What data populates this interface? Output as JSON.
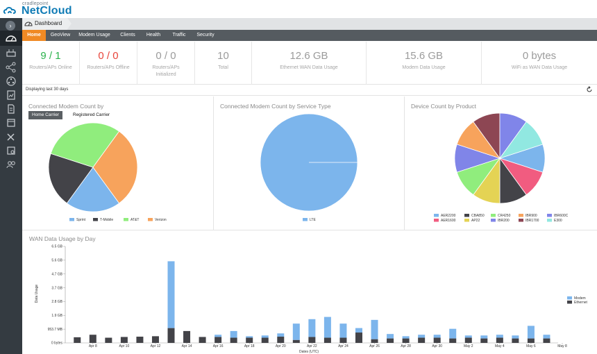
{
  "brand": {
    "small": "cradlepoint",
    "name": "NetCloud"
  },
  "breadcrumb": {
    "label": "Dashboard"
  },
  "tabs": [
    {
      "label": "Home",
      "active": true
    },
    {
      "label": "GeoView"
    },
    {
      "label": "Modem Usage"
    },
    {
      "label": "Clients"
    },
    {
      "label": "Health"
    },
    {
      "label": "Traffic"
    },
    {
      "label": "Security"
    }
  ],
  "sidebar": {
    "toggle": "›",
    "icons": [
      "dashboard-icon",
      "devices-icon",
      "network-icon",
      "groups-icon",
      "reports-icon",
      "documents-icon",
      "calendar-icon",
      "tools-icon",
      "settings-icon",
      "accounts-icon"
    ]
  },
  "stats": [
    {
      "value": "9 / 1",
      "label": "Routers/APs Online",
      "color": "#2bb24c"
    },
    {
      "value": "0 / 0",
      "label": "Routers/APs Offline",
      "color": "#e8443a"
    },
    {
      "value": "0 / 0",
      "label": "Routers/APs Initialized",
      "color": "#9b9b9b"
    },
    {
      "value": "10",
      "label": "Total",
      "color": "#9b9b9b"
    },
    {
      "value": "12.6 GB",
      "label": "Ethernet WAN Data Usage",
      "color": "#9b9b9b"
    },
    {
      "value": "15.6 GB",
      "label": "Modem Data Usage",
      "color": "#9b9b9b"
    },
    {
      "value": "0 bytes",
      "label": "WiFi as WAN Data Usage",
      "color": "#9b9b9b"
    }
  ],
  "filter": {
    "text": "Displaying last 30 days"
  },
  "panels": {
    "carrier": {
      "title": "Connected Modem Count by",
      "segments": [
        "Home Carrier",
        "Registered Carrier"
      ],
      "active_segment": "Home Carrier"
    },
    "service": {
      "title": "Connected Modem Count by Service Type"
    },
    "product": {
      "title": "Device Count by Product"
    }
  },
  "chart_data": [
    {
      "type": "pie",
      "labels": [
        "Sprint",
        "T-Mobile",
        "AT&T",
        "Verizon"
      ],
      "values": [
        2,
        2,
        3,
        3
      ],
      "colors": [
        "#7cb5ec",
        "#434348",
        "#90ed7d",
        "#f7a35c"
      ],
      "legend_position": "bottom"
    },
    {
      "type": "pie",
      "labels": [
        "LTE"
      ],
      "values": [
        10
      ],
      "colors": [
        "#7cb5ec"
      ],
      "legend_position": "bottom"
    },
    {
      "type": "pie",
      "labels": [
        "AER2200",
        "AER1600",
        "CBA850",
        "AP22",
        "CR4250",
        "IBR200",
        "IBR900",
        "IBR1700",
        "IBR600C",
        "E300"
      ],
      "values": [
        1,
        1,
        1,
        1,
        1,
        1,
        1,
        1,
        1,
        1
      ],
      "colors": [
        "#7cb5ec",
        "#f15c80",
        "#434348",
        "#e4d354",
        "#90ed7d",
        "#8085e8",
        "#f7a35c",
        "#8d4653",
        "#8085e9",
        "#91e8e1"
      ],
      "legend_position": "bottom"
    },
    {
      "type": "bar",
      "title": "WAN Data Usage by Day",
      "xlabel": "Dates (UTC)",
      "ylabel": "Data Usage",
      "stacked": true,
      "ytick_labels": [
        "0 bytes",
        "953.7 MB",
        "1.9 GB",
        "2.8 GB",
        "3.7 GB",
        "4.7 GB",
        "5.6 GB",
        "6.5 GB"
      ],
      "ylim_gb": [
        0,
        6.5
      ],
      "xtick_labels": [
        "Apr 8",
        "Apr 10",
        "Apr 12",
        "Apr 14",
        "Apr 16",
        "Apr 18",
        "Apr 20",
        "Apr 22",
        "Apr 24",
        "Apr 26",
        "Apr 28",
        "Apr 30",
        "May 2",
        "May 4",
        "May 6",
        "May 8"
      ],
      "categories": [
        "Apr 7",
        "Apr 8",
        "Apr 9",
        "Apr 10",
        "Apr 11",
        "Apr 12",
        "Apr 13",
        "Apr 14",
        "Apr 15",
        "Apr 16",
        "Apr 17",
        "Apr 18",
        "Apr 19",
        "Apr 20",
        "Apr 21",
        "Apr 22",
        "Apr 23",
        "Apr 24",
        "Apr 25",
        "Apr 26",
        "Apr 27",
        "Apr 28",
        "Apr 29",
        "Apr 30",
        "May 1",
        "May 2",
        "May 3",
        "May 4",
        "May 5",
        "May 6",
        "May 7"
      ],
      "series": [
        {
          "name": "Ethernet",
          "color": "#434348",
          "values": [
            0.38,
            0.55,
            0.35,
            0.4,
            0.42,
            0.45,
            1.0,
            0.8,
            0.4,
            0.4,
            0.35,
            0.35,
            0.35,
            0.42,
            0.2,
            0.4,
            0.35,
            0.35,
            0.7,
            0.25,
            0.3,
            0.3,
            0.35,
            0.35,
            0.3,
            0.35,
            0.3,
            0.35,
            0.3,
            0.3,
            0.3
          ]
        },
        {
          "name": "Modem",
          "color": "#7cb5ec",
          "values": [
            0.0,
            0.0,
            0.0,
            0.0,
            0.0,
            0.0,
            4.5,
            0.0,
            0.0,
            0.15,
            0.45,
            0.1,
            0.15,
            0.22,
            1.1,
            1.2,
            1.4,
            0.95,
            0.3,
            1.3,
            0.3,
            0.15,
            0.2,
            0.2,
            0.65,
            0.15,
            0.2,
            0.2,
            0.2,
            0.85,
            0.25
          ]
        }
      ],
      "legend_position": "right"
    }
  ]
}
